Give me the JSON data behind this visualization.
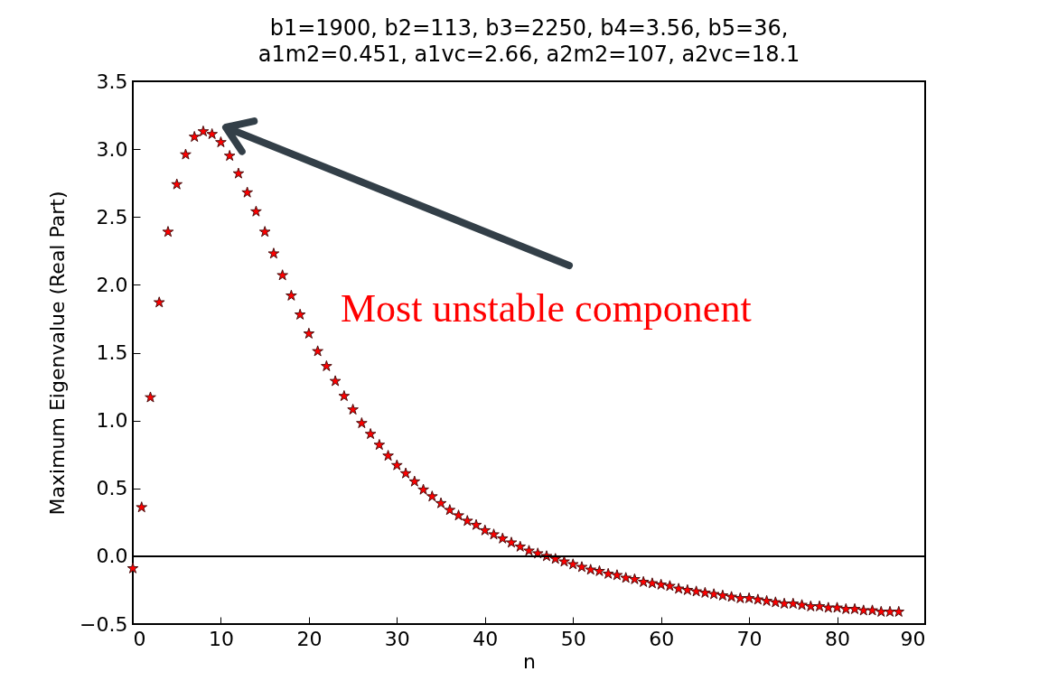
{
  "chart_data": {
    "type": "scatter",
    "title": "b1=1900, b2=113, b3=2250, b4=3.56, b5=36,\na1m2=0.451, a1vc=2.66, a2m2=107, a2vc=18.1",
    "xlabel": "n",
    "ylabel": "Maximum Eigenvalue (Real Part)",
    "x": [
      0,
      1,
      2,
      3,
      4,
      5,
      6,
      7,
      8,
      9,
      10,
      11,
      12,
      13,
      14,
      15,
      16,
      17,
      18,
      19,
      20,
      21,
      22,
      23,
      24,
      25,
      26,
      27,
      28,
      29,
      30,
      31,
      32,
      33,
      34,
      35,
      36,
      37,
      38,
      39,
      40,
      41,
      42,
      43,
      44,
      45,
      46,
      47,
      48,
      49,
      50,
      51,
      52,
      53,
      54,
      55,
      56,
      57,
      58,
      59,
      60,
      61,
      62,
      63,
      64,
      65,
      66,
      67,
      68,
      69,
      70,
      71,
      72,
      73,
      74,
      75,
      76,
      77,
      78,
      79,
      80,
      81,
      82,
      83,
      84,
      85,
      86,
      87
    ],
    "series": [
      {
        "color": "#ff0000",
        "values": [
          -0.09,
          0.36,
          1.17,
          1.87,
          2.39,
          2.74,
          2.96,
          3.09,
          3.13,
          3.11,
          3.05,
          2.95,
          2.82,
          2.68,
          2.54,
          2.39,
          2.23,
          2.07,
          1.92,
          1.78,
          1.64,
          1.51,
          1.4,
          1.29,
          1.18,
          1.08,
          0.98,
          0.9,
          0.82,
          0.74,
          0.67,
          0.61,
          0.55,
          0.49,
          0.44,
          0.39,
          0.34,
          0.3,
          0.26,
          0.23,
          0.19,
          0.16,
          0.13,
          0.1,
          0.07,
          0.04,
          0.02,
          0.0,
          -0.02,
          -0.04,
          -0.06,
          -0.08,
          -0.1,
          -0.11,
          -0.13,
          -0.14,
          -0.16,
          -0.17,
          -0.19,
          -0.2,
          -0.21,
          -0.22,
          -0.24,
          -0.25,
          -0.26,
          -0.27,
          -0.28,
          -0.29,
          -0.3,
          -0.31,
          -0.31,
          -0.32,
          -0.33,
          -0.34,
          -0.35,
          -0.35,
          -0.36,
          -0.37,
          -0.37,
          -0.38,
          -0.38,
          -0.39,
          -0.39,
          -0.4,
          -0.4,
          -0.41,
          -0.41,
          -0.41
        ]
      }
    ],
    "marker": "star",
    "xlim": [
      0,
      90
    ],
    "xticks": [
      0,
      10,
      20,
      30,
      40,
      50,
      60,
      70,
      80,
      90
    ],
    "ylim": [
      -0.5,
      3.5
    ],
    "yticks": [
      {
        "value": -0.5,
        "label": "−0.5"
      },
      {
        "value": 0,
        "label": "0.0"
      },
      {
        "value": 0.5,
        "label": "0.5"
      },
      {
        "value": 1,
        "label": "1.0"
      },
      {
        "value": 1.5,
        "label": "1.5"
      },
      {
        "value": 2,
        "label": "2.0"
      },
      {
        "value": 2.5,
        "label": "2.5"
      },
      {
        "value": 3,
        "label": "3.0"
      },
      {
        "value": 3.5,
        "label": "3.5"
      }
    ],
    "ref_lines": [
      {
        "axis": "y",
        "value": 0,
        "color": "#000000"
      }
    ],
    "annotations": [
      "Most unstable component"
    ],
    "grid": false
  }
}
